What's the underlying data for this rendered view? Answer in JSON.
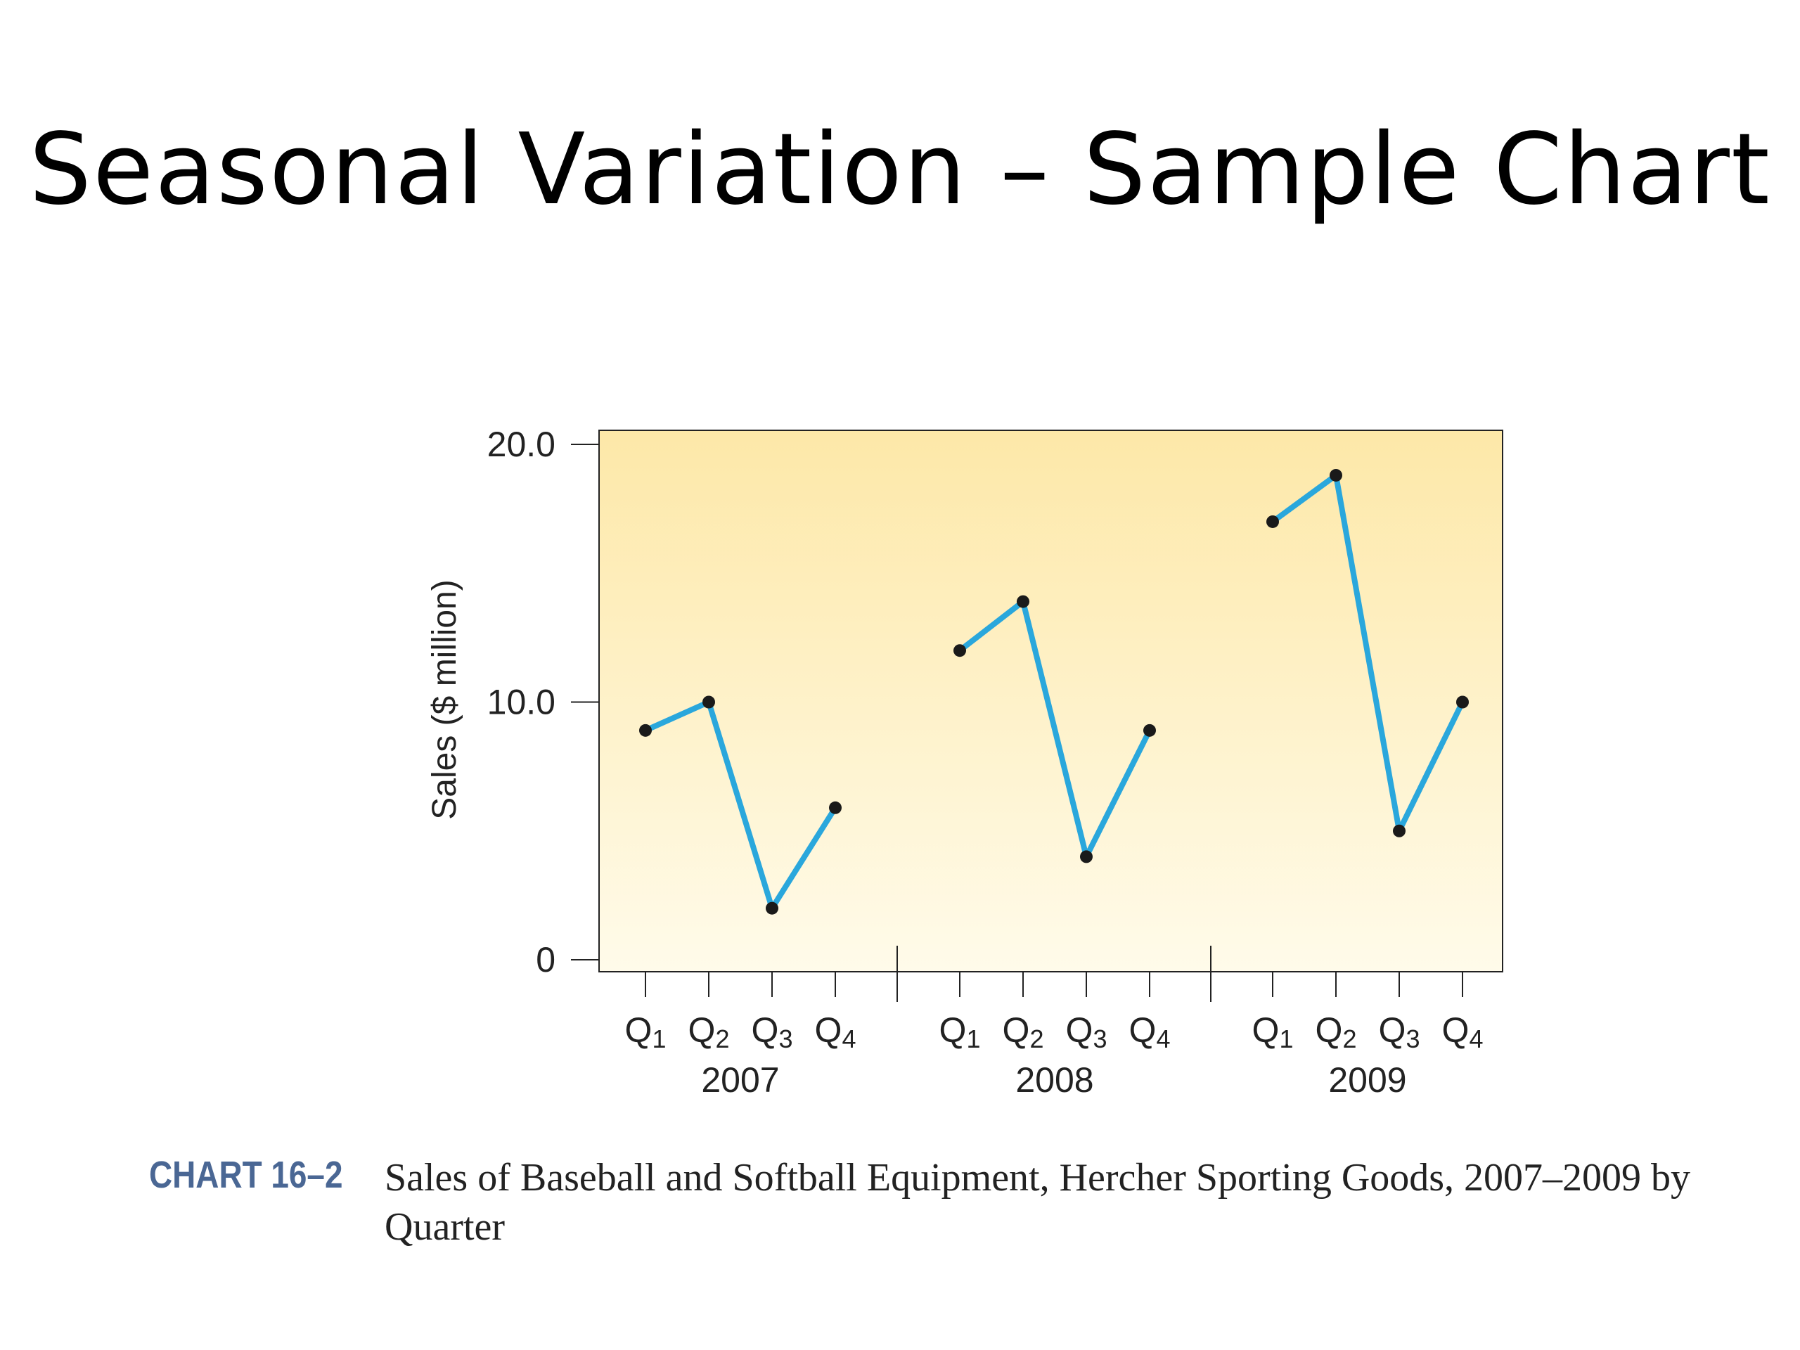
{
  "slide": {
    "title": "Seasonal Variation – Sample Chart"
  },
  "caption": {
    "id": "CHART 16–2",
    "text": "Sales of Baseball and Softball Equipment, Hercher Sporting Goods, 2007–2009 by Quarter"
  },
  "colors": {
    "line": "#2aa7dc",
    "point": "#1a1a1a",
    "plot_bg_top": "#fde8a8",
    "plot_bg_bottom": "#fffbea",
    "caption_id": "#4a6794"
  },
  "chart_data": {
    "type": "line",
    "ylabel": "Sales ($ million)",
    "ylim": [
      0,
      20
    ],
    "yticks": [
      0,
      10,
      20
    ],
    "ytick_labels": [
      "0",
      "10.0",
      "20.0"
    ],
    "grid": false,
    "quarter_labels": [
      "Q1",
      "Q2",
      "Q3",
      "Q4"
    ],
    "series": [
      {
        "group": "2007",
        "values": [
          8.9,
          10.0,
          2.0,
          5.9
        ]
      },
      {
        "group": "2008",
        "values": [
          12.0,
          13.9,
          4.0,
          8.9
        ]
      },
      {
        "group": "2009",
        "values": [
          17.0,
          18.8,
          5.0,
          10.0
        ]
      }
    ]
  }
}
